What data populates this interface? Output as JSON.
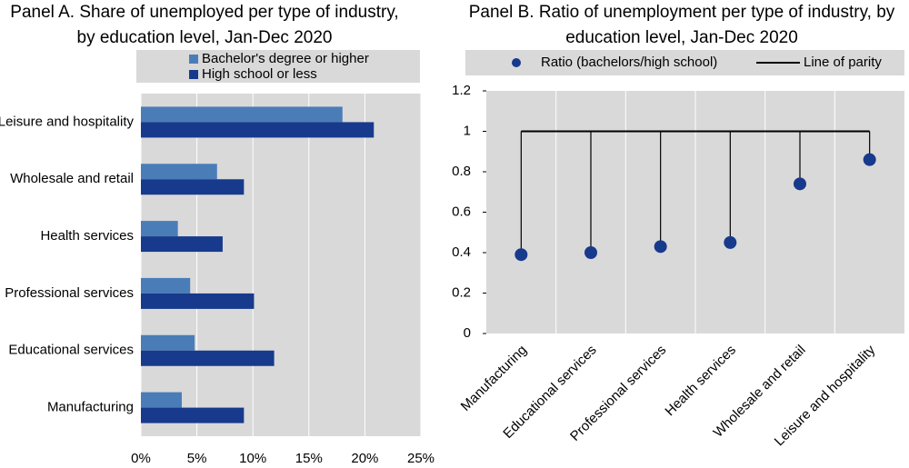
{
  "chart_data": [
    {
      "type": "bar",
      "orientation": "horizontal",
      "title": [
        "Panel A. Share of unemployed per type of industry,",
        "by education level, Jan-Dec 2020"
      ],
      "categories": [
        "Leisure and hospitality",
        "Wholesale and retail",
        "Health services",
        "Professional services",
        "Educational services",
        "Manufacturing"
      ],
      "series": [
        {
          "name": "Bachelor's degree or higher",
          "color": "#4a7db8",
          "values": [
            18.0,
            6.8,
            3.3,
            4.4,
            4.8,
            3.65
          ]
        },
        {
          "name": "High school or less",
          "color": "#173a8c",
          "values": [
            20.8,
            9.2,
            7.3,
            10.1,
            11.9,
            9.2
          ]
        }
      ],
      "xlim": [
        0,
        25
      ],
      "xticks": [
        {
          "value": 0,
          "label": "0%"
        },
        {
          "value": 5,
          "label": "5%"
        },
        {
          "value": 10,
          "label": "10%"
        },
        {
          "value": 15,
          "label": "15%"
        },
        {
          "value": 20,
          "label": "20%"
        },
        {
          "value": 25,
          "label": "25%"
        }
      ],
      "grid": true
    },
    {
      "type": "lollipop",
      "title": [
        "Panel B.  Ratio of unemployment per type of industry, by",
        "education level, Jan-Dec 2020"
      ],
      "categories": [
        "Manufacturing",
        "Educational services",
        "Professional services",
        "Health services",
        "Wholesale and retail",
        "Leisure and hospitality"
      ],
      "series": [
        {
          "name": "Ratio (bachelors/high school)",
          "color": "#173a8c",
          "values": [
            0.39,
            0.4,
            0.43,
            0.45,
            0.74,
            0.86
          ]
        }
      ],
      "parity_name": "Line of parity",
      "parity": 1,
      "ylim": [
        0,
        1.2
      ],
      "yticks": [
        0,
        0.2,
        0.4,
        0.6,
        0.8,
        1,
        1.2
      ],
      "grid": true
    }
  ]
}
